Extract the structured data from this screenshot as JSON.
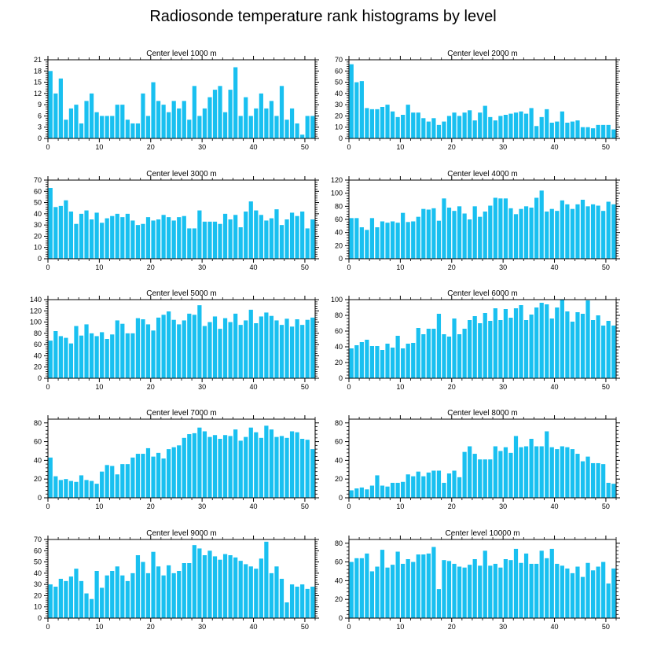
{
  "figure": {
    "title": "Radiosonde temperature rank histograms by level"
  },
  "colors": {
    "bar": "#19C0F0",
    "axis": "#000000",
    "background": "#ffffff"
  },
  "chart_data": [
    {
      "type": "bar",
      "title": "Center level 1000 m",
      "xlim": [
        0,
        52
      ],
      "xticks": [
        0,
        10,
        20,
        30,
        40,
        50
      ],
      "ylim": [
        0,
        21
      ],
      "yticks": [
        0,
        3,
        6,
        9,
        12,
        15,
        18,
        21
      ],
      "values": [
        18,
        12,
        16,
        5,
        8,
        9,
        4,
        10,
        12,
        7,
        6,
        6,
        6,
        9,
        9,
        5,
        4,
        4,
        12,
        6,
        15,
        10,
        9,
        7,
        10,
        8,
        10,
        5,
        14,
        6,
        8,
        11,
        13,
        14,
        7,
        13,
        19,
        6,
        11,
        6,
        8,
        12,
        8,
        10,
        6,
        14,
        5,
        8,
        4,
        1,
        6,
        6
      ]
    },
    {
      "type": "bar",
      "title": "Center level 2000 m",
      "xlim": [
        0,
        52
      ],
      "xticks": [
        0,
        10,
        20,
        30,
        40,
        50
      ],
      "ylim": [
        0,
        70
      ],
      "yticks": [
        0,
        10,
        20,
        30,
        40,
        50,
        60,
        70
      ],
      "values": [
        66,
        50,
        51,
        27,
        26,
        26,
        28,
        30,
        24,
        19,
        21,
        30,
        23,
        23,
        18,
        15,
        18,
        12,
        15,
        20,
        23,
        20,
        23,
        25,
        16,
        23,
        29,
        19,
        16,
        20,
        21,
        22,
        23,
        24,
        22,
        27,
        11,
        19,
        26,
        14,
        15,
        24,
        14,
        15,
        16,
        10,
        10,
        9,
        12,
        12,
        12,
        8
      ]
    },
    {
      "type": "bar",
      "title": "Center level 3000 m",
      "xlim": [
        0,
        52
      ],
      "xticks": [
        0,
        10,
        20,
        30,
        40,
        50
      ],
      "ylim": [
        0,
        70
      ],
      "yticks": [
        0,
        10,
        20,
        30,
        40,
        50,
        60,
        70
      ],
      "values": [
        63,
        46,
        47,
        52,
        42,
        31,
        40,
        43,
        35,
        41,
        32,
        36,
        38,
        40,
        37,
        40,
        34,
        30,
        31,
        37,
        34,
        35,
        39,
        37,
        34,
        37,
        38,
        27,
        27,
        43,
        33,
        33,
        33,
        31,
        40,
        35,
        39,
        28,
        42,
        51,
        43,
        39,
        34,
        36,
        44,
        30,
        35,
        41,
        38,
        42,
        27,
        35
      ]
    },
    {
      "type": "bar",
      "title": "Center level 4000 m",
      "xlim": [
        0,
        52
      ],
      "xticks": [
        0,
        10,
        20,
        30,
        40,
        50
      ],
      "ylim": [
        0,
        120
      ],
      "yticks": [
        0,
        20,
        40,
        60,
        80,
        100,
        120
      ],
      "values": [
        62,
        62,
        48,
        44,
        62,
        48,
        57,
        55,
        57,
        55,
        70,
        56,
        57,
        64,
        76,
        75,
        77,
        58,
        92,
        78,
        73,
        80,
        69,
        60,
        80,
        64,
        72,
        81,
        93,
        92,
        92,
        77,
        68,
        76,
        80,
        78,
        93,
        104,
        72,
        76,
        73,
        89,
        83,
        76,
        83,
        90,
        80,
        83,
        81,
        73,
        87,
        83
      ]
    },
    {
      "type": "bar",
      "title": "Center level 5000 m",
      "xlim": [
        0,
        52
      ],
      "xticks": [
        0,
        10,
        20,
        30,
        40,
        50
      ],
      "ylim": [
        0,
        140
      ],
      "yticks": [
        0,
        20,
        40,
        60,
        80,
        100,
        120,
        140
      ],
      "values": [
        67,
        84,
        75,
        72,
        62,
        93,
        76,
        96,
        80,
        75,
        82,
        70,
        78,
        103,
        97,
        80,
        80,
        107,
        105,
        96,
        85,
        108,
        113,
        119,
        104,
        96,
        103,
        115,
        113,
        130,
        93,
        100,
        110,
        88,
        107,
        100,
        115,
        95,
        103,
        122,
        98,
        110,
        117,
        111,
        103,
        95,
        106,
        92,
        105,
        95,
        104,
        108
      ]
    },
    {
      "type": "bar",
      "title": "Center level 6000 m",
      "xlim": [
        0,
        52
      ],
      "xticks": [
        0,
        10,
        20,
        30,
        40,
        50
      ],
      "ylim": [
        0,
        100
      ],
      "yticks": [
        0,
        20,
        40,
        60,
        80,
        100
      ],
      "values": [
        38,
        42,
        46,
        49,
        41,
        41,
        36,
        44,
        39,
        54,
        38,
        44,
        45,
        64,
        56,
        63,
        63,
        82,
        56,
        53,
        76,
        56,
        63,
        74,
        79,
        70,
        83,
        73,
        89,
        74,
        88,
        77,
        89,
        93,
        74,
        81,
        90,
        96,
        94,
        76,
        90,
        100,
        85,
        72,
        84,
        82,
        99,
        74,
        80,
        67,
        73,
        67
      ]
    },
    {
      "type": "bar",
      "title": "Center level 7000 m",
      "xlim": [
        0,
        52
      ],
      "xticks": [
        0,
        10,
        20,
        30,
        40,
        50
      ],
      "ylim": [
        0,
        84
      ],
      "yticks": [
        0,
        20,
        40,
        60,
        80
      ],
      "values": [
        43,
        23,
        19,
        20,
        18,
        17,
        24,
        19,
        18,
        15,
        28,
        35,
        34,
        25,
        36,
        36,
        43,
        47,
        47,
        53,
        44,
        48,
        42,
        52,
        54,
        56,
        64,
        68,
        69,
        75,
        71,
        65,
        67,
        63,
        67,
        66,
        73,
        61,
        65,
        75,
        70,
        64,
        77,
        73,
        65,
        66,
        64,
        71,
        70,
        63,
        62,
        52
      ]
    },
    {
      "type": "bar",
      "title": "Center level 8000 m",
      "xlim": [
        0,
        52
      ],
      "xticks": [
        0,
        10,
        20,
        30,
        40,
        50
      ],
      "ylim": [
        0,
        84
      ],
      "yticks": [
        0,
        20,
        40,
        60,
        80
      ],
      "values": [
        8,
        10,
        11,
        9,
        13,
        24,
        13,
        12,
        16,
        16,
        17,
        25,
        23,
        28,
        23,
        27,
        29,
        29,
        16,
        26,
        29,
        22,
        49,
        55,
        47,
        41,
        41,
        41,
        55,
        50,
        54,
        48,
        66,
        54,
        55,
        63,
        55,
        55,
        71,
        54,
        52,
        55,
        54,
        52,
        47,
        39,
        44,
        37,
        37,
        36,
        16,
        15
      ]
    },
    {
      "type": "bar",
      "title": "Center level 9000 m",
      "xlim": [
        0,
        52
      ],
      "xticks": [
        0,
        10,
        20,
        30,
        40,
        50
      ],
      "ylim": [
        0,
        70
      ],
      "yticks": [
        0,
        10,
        20,
        30,
        40,
        50,
        60,
        70
      ],
      "values": [
        30,
        28,
        35,
        33,
        37,
        44,
        33,
        22,
        17,
        42,
        27,
        38,
        42,
        46,
        38,
        33,
        40,
        56,
        50,
        40,
        59,
        46,
        38,
        47,
        40,
        42,
        49,
        49,
        65,
        62,
        56,
        60,
        55,
        52,
        57,
        56,
        54,
        51,
        48,
        46,
        44,
        53,
        68,
        40,
        46,
        35,
        14,
        30,
        28,
        30,
        26,
        28
      ]
    },
    {
      "type": "bar",
      "title": "Center level 10000 m",
      "xlim": [
        0,
        52
      ],
      "xticks": [
        0,
        10,
        20,
        30,
        40,
        50
      ],
      "ylim": [
        0,
        84
      ],
      "yticks": [
        0,
        20,
        40,
        60,
        80
      ],
      "values": [
        60,
        64,
        64,
        69,
        50,
        55,
        73,
        54,
        57,
        71,
        58,
        63,
        60,
        68,
        68,
        69,
        76,
        31,
        62,
        61,
        58,
        55,
        54,
        57,
        63,
        56,
        72,
        56,
        58,
        54,
        63,
        62,
        74,
        59,
        69,
        58,
        58,
        72,
        64,
        74,
        58,
        56,
        53,
        48,
        55,
        44,
        59,
        51,
        55,
        60,
        37,
        53
      ]
    }
  ]
}
